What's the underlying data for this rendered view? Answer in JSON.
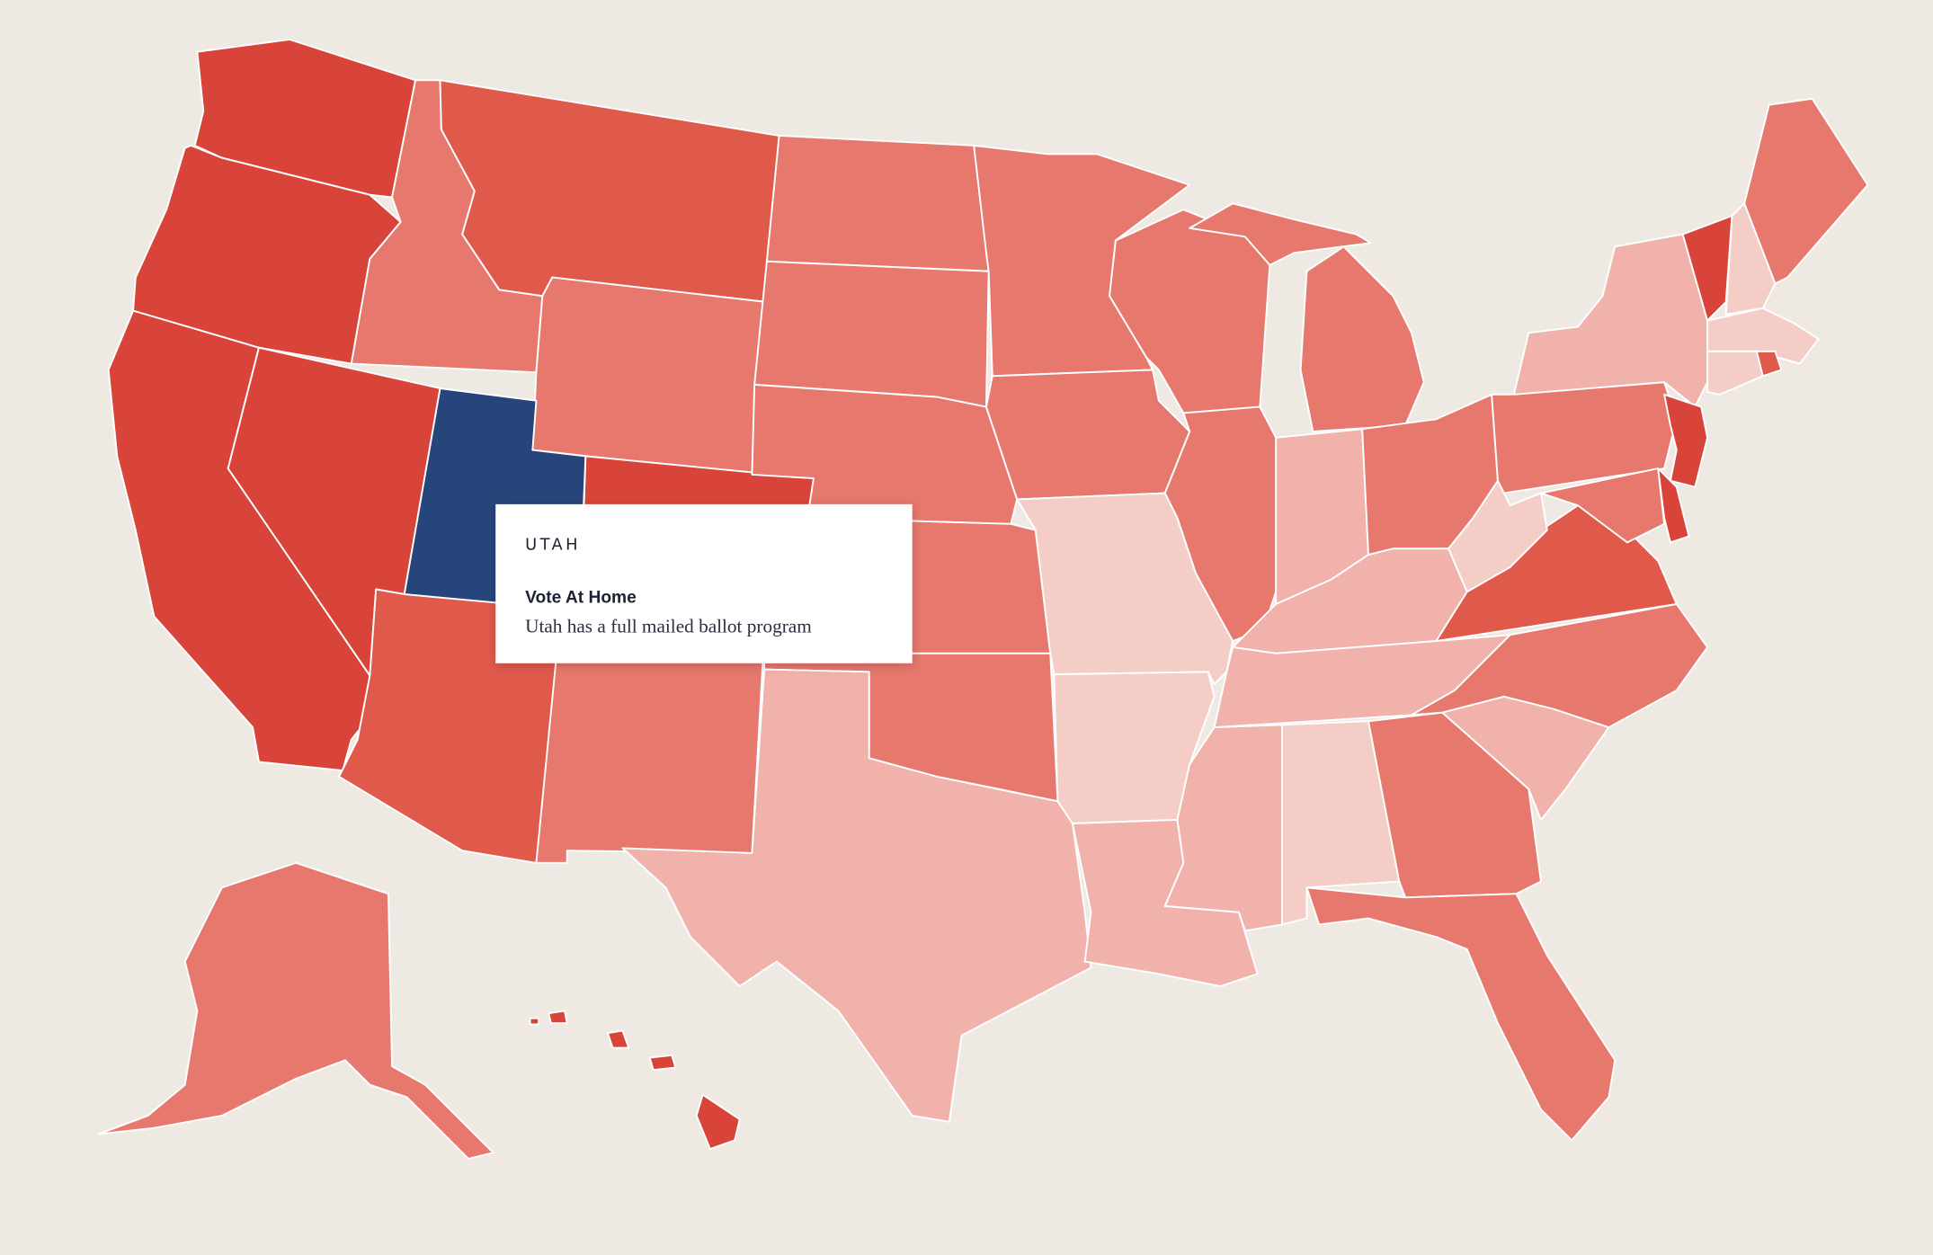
{
  "tooltip": {
    "state": "UTAH",
    "title": "Vote At Home",
    "description": "Utah has a full mailed ballot program"
  }
}
